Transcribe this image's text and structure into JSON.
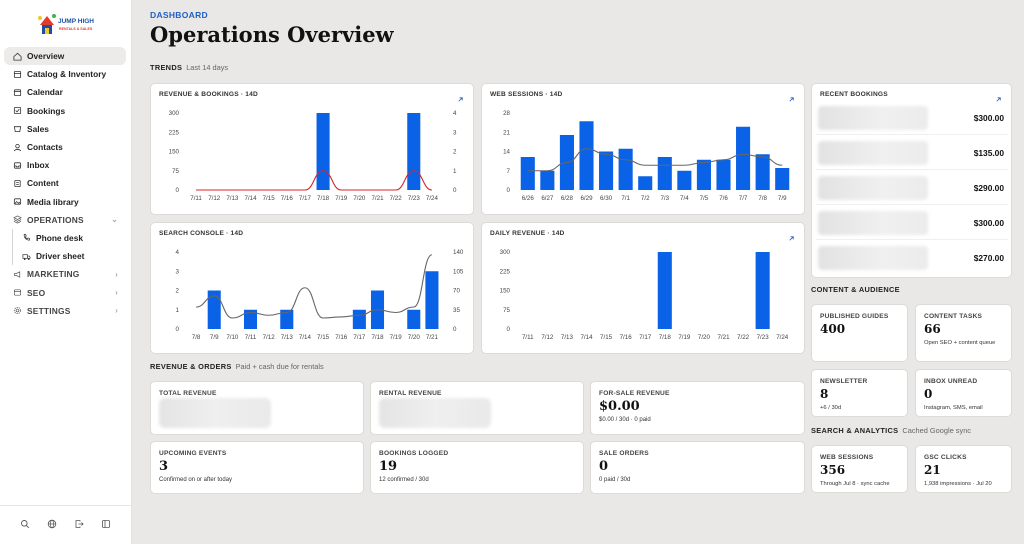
{
  "brand": {
    "logo_text": "JUMP HIGH",
    "logo_sub": "RENTALS & SALES"
  },
  "nav": {
    "items": [
      {
        "label": "Overview",
        "icon": "home-icon",
        "active": true
      },
      {
        "label": "Catalog & Inventory",
        "icon": "catalog-icon"
      },
      {
        "label": "Calendar",
        "icon": "calendar-icon"
      },
      {
        "label": "Bookings",
        "icon": "bookings-icon"
      },
      {
        "label": "Sales",
        "icon": "sales-icon"
      },
      {
        "label": "Contacts",
        "icon": "contacts-icon"
      },
      {
        "label": "Inbox",
        "icon": "inbox-icon"
      },
      {
        "label": "Content",
        "icon": "content-icon"
      },
      {
        "label": "Media library",
        "icon": "media-icon"
      }
    ],
    "operations": {
      "label": "OPERATIONS",
      "children": [
        {
          "label": "Phone desk",
          "icon": "phone-icon"
        },
        {
          "label": "Driver sheet",
          "icon": "truck-icon"
        }
      ]
    },
    "marketing": "MARKETING",
    "seo": "SEO",
    "settings": "SETTINGS"
  },
  "header": {
    "crumb": "DASHBOARD",
    "title": "Operations Overview"
  },
  "sections": {
    "trends": {
      "label": "TRENDS",
      "sub": "Last 14 days"
    },
    "revenue_orders": {
      "label": "REVENUE & ORDERS",
      "sub": "Paid + cash due for rentals"
    },
    "content_audience": {
      "label": "CONTENT & AUDIENCE"
    },
    "search_analytics": {
      "label": "SEARCH & ANALYTICS",
      "sub": "Cached Google sync"
    }
  },
  "recent_bookings": {
    "title": "RECENT BOOKINGS",
    "amounts": [
      "$300.00",
      "$135.00",
      "$290.00",
      "$300.00",
      "$270.00"
    ]
  },
  "kpis": {
    "total_revenue": {
      "label": "TOTAL REVENUE"
    },
    "rental_revenue": {
      "label": "RENTAL REVENUE"
    },
    "for_sale_revenue": {
      "label": "FOR-SALE REVENUE",
      "value": "$0.00",
      "sub": "$0.00 / 30d · 0 paid"
    },
    "upcoming_events": {
      "label": "UPCOMING EVENTS",
      "value": "3",
      "sub": "Confirmed on or after today"
    },
    "bookings_logged": {
      "label": "BOOKINGS LOGGED",
      "value": "19",
      "sub": "12 confirmed / 30d"
    },
    "sale_orders": {
      "label": "SALE ORDERS",
      "value": "0",
      "sub": "0 paid / 30d"
    },
    "published_guides": {
      "label": "PUBLISHED GUIDES",
      "value": "400",
      "sub": ""
    },
    "content_tasks": {
      "label": "CONTENT TASKS",
      "value": "66",
      "sub": "Open SEO + content queue"
    },
    "newsletter": {
      "label": "NEWSLETTER",
      "value": "8",
      "sub": "+6 / 30d"
    },
    "inbox_unread": {
      "label": "INBOX UNREAD",
      "value": "0",
      "sub": "Instagram, SMS, email"
    },
    "web_sessions": {
      "label": "WEB SESSIONS",
      "value": "356",
      "sub": "Through Jul 8 · sync cache"
    },
    "gsc_clicks": {
      "label": "GSC CLICKS",
      "value": "21",
      "sub": "1,938 impressions · Jul 20"
    }
  },
  "colors": {
    "bar": "#0a63e6",
    "line_red": "#d9262a",
    "line_gray": "#666666",
    "accent": "#1f5fc2"
  },
  "chart_data": [
    {
      "type": "bar",
      "title": "REVENUE & BOOKINGS · 14D",
      "categories": [
        "7/11",
        "7/12",
        "7/13",
        "7/14",
        "7/15",
        "7/16",
        "7/17",
        "7/18",
        "7/19",
        "7/20",
        "7/21",
        "7/22",
        "7/23",
        "7/24"
      ],
      "series": [
        {
          "name": "",
          "values": [
            0,
            0,
            0,
            0,
            0,
            0,
            0,
            300,
            0,
            0,
            0,
            0,
            300,
            0
          ]
        }
      ],
      "line": [
        0,
        0,
        0,
        0,
        0,
        0,
        0,
        1,
        0,
        0,
        0,
        0,
        1,
        0
      ],
      "ylim": [
        0,
        300
      ],
      "yticks": [
        0,
        75,
        150,
        225,
        300
      ],
      "y2lim": [
        0,
        4
      ],
      "y2ticks": [
        0,
        1,
        2,
        3,
        4
      ]
    },
    {
      "type": "bar",
      "title": "WEB SESSIONS · 14D",
      "categories": [
        "6/26",
        "6/27",
        "6/28",
        "6/29",
        "6/30",
        "7/1",
        "7/2",
        "7/3",
        "7/4",
        "7/5",
        "7/6",
        "7/7",
        "7/8",
        "7/9"
      ],
      "series": [
        {
          "name": "",
          "values": [
            12,
            7,
            20,
            25,
            14,
            15,
            5,
            12,
            7,
            11,
            11,
            23,
            13,
            8
          ]
        }
      ],
      "line": [
        7,
        7,
        10,
        15,
        13,
        11,
        9,
        9,
        9,
        10,
        11,
        13,
        12,
        9
      ],
      "ylim": [
        0,
        28
      ],
      "yticks": [
        0,
        7,
        14,
        21,
        28
      ]
    },
    {
      "type": "bar",
      "title": "SEARCH CONSOLE · 14D",
      "categories": [
        "7/8",
        "7/9",
        "7/10",
        "7/11",
        "7/12",
        "7/13",
        "7/14",
        "7/15",
        "7/16",
        "7/17",
        "7/18",
        "7/19",
        "7/20",
        "7/21"
      ],
      "series": [
        {
          "name": "",
          "values": [
            0,
            2,
            0,
            1,
            0,
            1,
            0,
            0,
            0,
            1,
            2,
            0,
            1,
            3
          ]
        }
      ],
      "line": [
        40,
        60,
        20,
        30,
        25,
        30,
        75,
        20,
        22,
        25,
        35,
        30,
        40,
        135
      ],
      "ylim": [
        0,
        4
      ],
      "yticks": [
        0,
        1,
        2,
        3,
        4
      ],
      "y2lim": [
        0,
        140
      ],
      "y2ticks": [
        0,
        35,
        70,
        105,
        140
      ]
    },
    {
      "type": "bar",
      "title": "DAILY REVENUE · 14D",
      "categories": [
        "7/11",
        "7/12",
        "7/13",
        "7/14",
        "7/15",
        "7/16",
        "7/17",
        "7/18",
        "7/19",
        "7/20",
        "7/21",
        "7/22",
        "7/23",
        "7/24"
      ],
      "series": [
        {
          "name": "",
          "values": [
            0,
            0,
            0,
            0,
            0,
            0,
            0,
            300,
            0,
            0,
            0,
            0,
            300,
            0
          ]
        }
      ],
      "ylim": [
        0,
        300
      ],
      "yticks": [
        0,
        75,
        150,
        225,
        300
      ]
    }
  ]
}
